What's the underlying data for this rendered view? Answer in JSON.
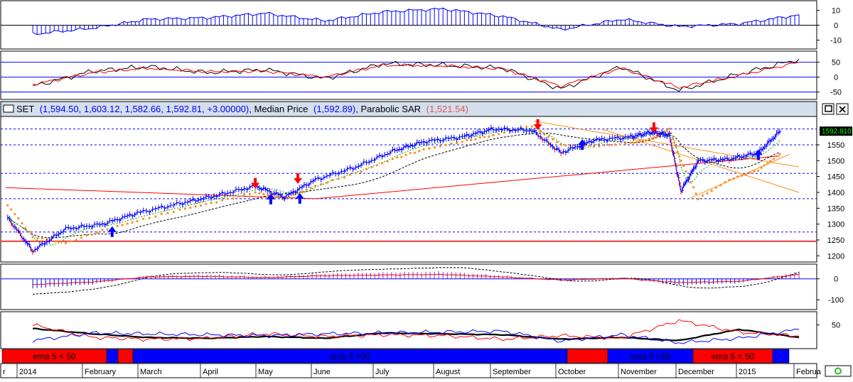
{
  "header": {
    "symbol": "SET",
    "ohlc": "(1,594.50, 1,603.12, 1,582.66, 1,592.81, +3.00000)",
    "median_label": "Median Price",
    "median_value": "(1,592.89)",
    "sar_label": "Parabolic SAR",
    "sar_value": "(1,521.54)"
  },
  "colors": {
    "blue": "#0000ff",
    "red": "#ff0000",
    "orange": "#ff8c1a",
    "green": "#00aa00",
    "black": "#000000",
    "header_bg": "#d4dfee",
    "price_badge_bg": "#000000",
    "price_badge_fg": "#00ff00"
  },
  "last_price_label": "1592.810",
  "month_labels": [
    "r",
    "2014",
    "February",
    "March",
    "April",
    "May",
    "June",
    "July",
    "August",
    "September",
    "October",
    "November",
    "December",
    "2015",
    "Februa"
  ],
  "regimes": [
    {
      "label": "ema 5 < 50",
      "color": "red"
    },
    {
      "label": "",
      "color": "blue"
    },
    {
      "label": "",
      "color": "red"
    },
    {
      "label": "ema 5 >50",
      "color": "blue"
    },
    {
      "label": "",
      "color": "red"
    },
    {
      "label": "ema 5 >50",
      "color": "blue"
    },
    {
      "label": "ema 5 < 50",
      "color": "red"
    },
    {
      "label": "",
      "color": "blue"
    }
  ],
  "status_icon": "status-circle-icon",
  "window_buttons": {
    "restore": "restore-icon",
    "close": "close-icon"
  },
  "chart_data": [
    {
      "type": "bar",
      "panel": "histogram oscillator (top)",
      "yticks": [
        10,
        0,
        -10
      ],
      "ylim": [
        -15,
        15
      ],
      "x": [
        "2014-01",
        "2014-02",
        "2014-03",
        "2014-04",
        "2014-05",
        "2014-06",
        "2014-07",
        "2014-08",
        "2014-09",
        "2014-10",
        "2014-11",
        "2014-12",
        "2015-01",
        "2015-02"
      ],
      "values": [
        -6,
        -2,
        4,
        5,
        8,
        3,
        9,
        11,
        6,
        -3,
        4,
        -1,
        1,
        7
      ]
    },
    {
      "type": "line",
      "panel": "stochastic oscillator",
      "yticks": [
        50,
        0,
        -50
      ],
      "ylim": [
        -70,
        80
      ],
      "hlines": [
        50,
        0,
        -50
      ],
      "x": [
        "2014-01",
        "2014-02",
        "2014-03",
        "2014-04",
        "2014-05",
        "2014-06",
        "2014-07",
        "2014-08",
        "2014-09",
        "2014-10",
        "2014-11",
        "2014-12",
        "2015-01",
        "2015-02"
      ],
      "series": [
        {
          "color": "black",
          "values": [
            -30,
            20,
            35,
            15,
            25,
            -5,
            45,
            40,
            30,
            -40,
            35,
            -45,
            10,
            60
          ]
        },
        {
          "color": "red",
          "values": [
            -25,
            15,
            30,
            18,
            20,
            0,
            40,
            38,
            28,
            -30,
            30,
            -35,
            5,
            50
          ]
        }
      ]
    },
    {
      "type": "line",
      "panel": "SET price",
      "yticks": [
        1550,
        1500,
        1450,
        1400,
        1350,
        1300,
        1250,
        1200
      ],
      "ylim": [
        1185,
        1635
      ],
      "hlines_dashed": [
        1600,
        1550,
        1460,
        1380,
        1275
      ],
      "hline_solid": 1246,
      "x": [
        "2014-01-02",
        "2014-01-15",
        "2014-02-01",
        "2014-02-20",
        "2014-03-10",
        "2014-04-01",
        "2014-04-20",
        "2014-05-10",
        "2014-05-25",
        "2014-06-10",
        "2014-07-01",
        "2014-07-20",
        "2014-08-05",
        "2014-08-25",
        "2014-09-10",
        "2014-09-30",
        "2014-10-15",
        "2014-11-01",
        "2014-11-20",
        "2014-12-01",
        "2014-12-10",
        "2014-12-16",
        "2014-12-25",
        "2015-01-10",
        "2015-01-25",
        "2015-02-05"
      ],
      "series": [
        {
          "name": "SET",
          "color": "blue",
          "values": [
            1320,
            1215,
            1285,
            1300,
            1335,
            1365,
            1390,
            1420,
            1385,
            1440,
            1480,
            1530,
            1560,
            1575,
            1600,
            1595,
            1525,
            1565,
            1575,
            1590,
            1580,
            1405,
            1500,
            1505,
            1525,
            1592
          ]
        },
        {
          "name": "SAR",
          "color": "orange",
          "values": [
            1360,
            1260,
            1240,
            1280,
            1310,
            1345,
            1370,
            1400,
            1380,
            1420,
            1460,
            1505,
            1535,
            1560,
            1580,
            1610,
            1550,
            1545,
            1555,
            1570,
            1600,
            1500,
            1380,
            1440,
            1470,
            1521
          ]
        }
      ],
      "signals": [
        {
          "type": "buy",
          "x": "2014-02-25",
          "y": 1275
        },
        {
          "type": "buy",
          "x": "2014-05-18",
          "y": 1378
        },
        {
          "type": "buy",
          "x": "2014-06-02",
          "y": 1380
        },
        {
          "type": "sell",
          "x": "2014-05-10",
          "y": 1430
        },
        {
          "type": "sell",
          "x": "2014-06-01",
          "y": 1445
        },
        {
          "type": "sell",
          "x": "2014-10-03",
          "y": 1615
        },
        {
          "type": "buy",
          "x": "2014-10-26",
          "y": 1550
        },
        {
          "type": "sell",
          "x": "2014-12-02",
          "y": 1605
        },
        {
          "type": "buy",
          "x": "2015-01-25",
          "y": 1518
        }
      ]
    },
    {
      "type": "bar",
      "panel": "MACD-style histogram",
      "yticks": [
        0,
        -100
      ],
      "ylim": [
        -140,
        60
      ],
      "x": [
        "2014-01",
        "2014-02",
        "2014-03",
        "2014-04",
        "2014-05",
        "2014-06",
        "2014-07",
        "2014-08",
        "2014-09",
        "2014-10",
        "2014-11",
        "2014-12",
        "2015-01",
        "2015-02"
      ],
      "values": [
        -45,
        -25,
        15,
        20,
        10,
        25,
        30,
        35,
        15,
        -10,
        5,
        -30,
        -20,
        35
      ]
    },
    {
      "type": "line",
      "panel": "ADX / DMI",
      "yticks": [
        50
      ],
      "ylim": [
        0,
        75
      ],
      "x": [
        "2014-01",
        "2014-02",
        "2014-03",
        "2014-04",
        "2014-05",
        "2014-06",
        "2014-07",
        "2014-08",
        "2014-09",
        "2014-10",
        "2014-11",
        "2014-12",
        "2015-01",
        "2015-02"
      ],
      "series": [
        {
          "color": "black",
          "values": [
            42,
            30,
            22,
            20,
            24,
            20,
            32,
            30,
            28,
            18,
            22,
            15,
            40,
            22
          ]
        },
        {
          "color": "red",
          "values": [
            50,
            22,
            18,
            20,
            30,
            24,
            28,
            26,
            18,
            26,
            20,
            60,
            34,
            25
          ]
        },
        {
          "color": "blue",
          "values": [
            15,
            32,
            30,
            28,
            26,
            30,
            32,
            34,
            36,
            14,
            28,
            10,
            20,
            40
          ]
        }
      ]
    }
  ]
}
